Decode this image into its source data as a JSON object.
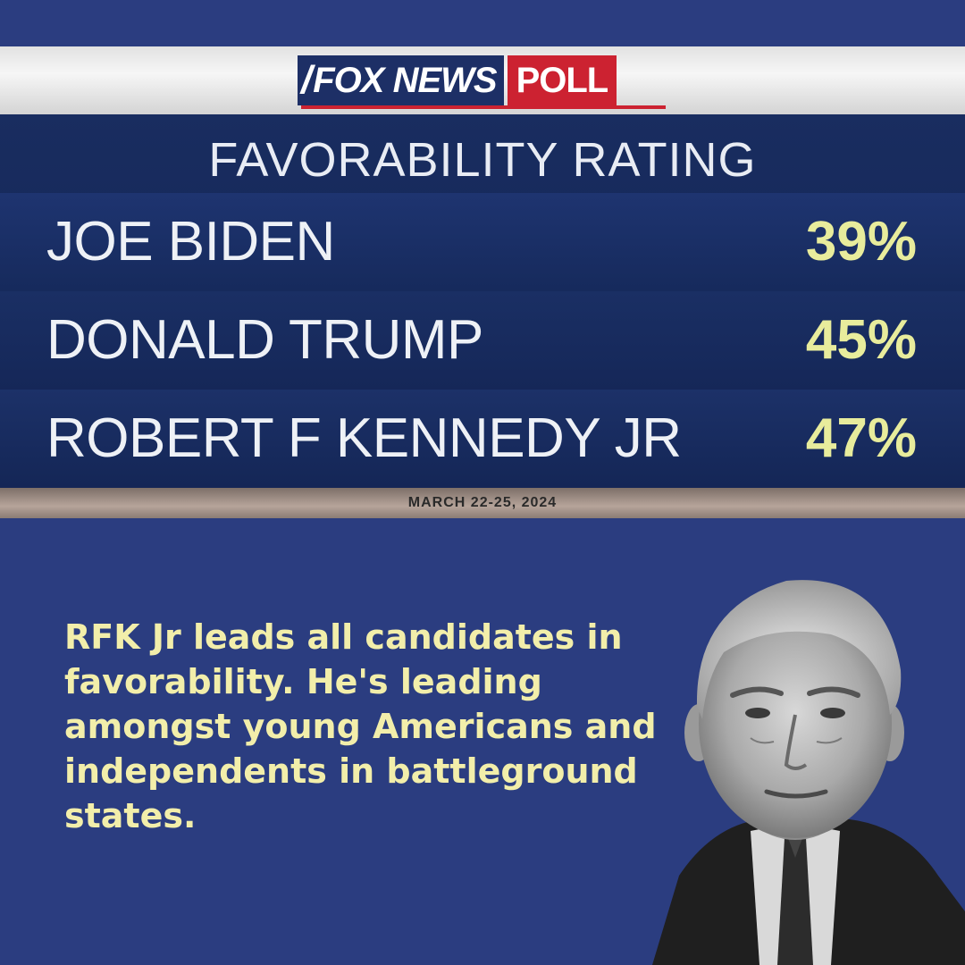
{
  "poll": {
    "brand_name": "FOX NEWS",
    "brand_tag": "POLL",
    "title": "FAVORABILITY RATING",
    "rows": [
      {
        "name": "JOE BIDEN",
        "value": "39%"
      },
      {
        "name": "DONALD TRUMP",
        "value": "45%"
      },
      {
        "name": "ROBERT F KENNEDY JR",
        "value": "47%"
      }
    ],
    "date": "MARCH 22-25, 2024"
  },
  "caption": "RFK Jr leads all candidates in favorability.  He's leading amongst young Americans and independents in battleground states.",
  "colors": {
    "page_background": "#2b3d80",
    "poll_background": "#1b2f62",
    "value_text": "#e8ec9c",
    "caption_text": "#f2eeaa",
    "brand_red": "#cc2231"
  },
  "icons": {
    "brand_mark": "fox-news-logo",
    "portrait": "person-portrait"
  }
}
